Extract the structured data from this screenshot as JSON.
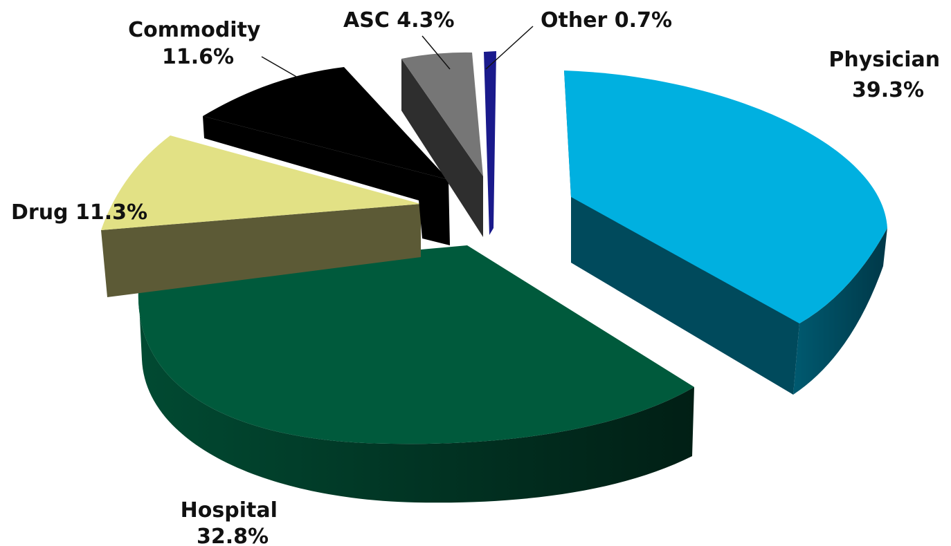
{
  "chart_data": {
    "type": "pie",
    "style": "3d-exploded",
    "title": "",
    "legend": "none",
    "slices": [
      {
        "name": "Physician",
        "value": 39.3,
        "value_label": "39.3%",
        "color": "#00B0E0",
        "side_color": "#004A5C"
      },
      {
        "name": "Hospital",
        "value": 32.8,
        "value_label": "32.8%",
        "color": "#005A3C",
        "side_color": "#012B1D"
      },
      {
        "name": "Drug",
        "value": 11.3,
        "value_label": "11.3%",
        "color": "#E2E185",
        "side_color": "#5C5A36"
      },
      {
        "name": "Commodity",
        "value": 11.6,
        "value_label": "11.6%",
        "color": "#000000",
        "side_color": "#000000"
      },
      {
        "name": "ASC",
        "value": 4.3,
        "value_label": "4.3%",
        "color": "#767676",
        "side_color": "#2E2E2E"
      },
      {
        "name": "Other",
        "value": 0.7,
        "value_label": "0.7%",
        "color": "#1A1A8C",
        "side_color": "#0D0D55"
      }
    ]
  }
}
